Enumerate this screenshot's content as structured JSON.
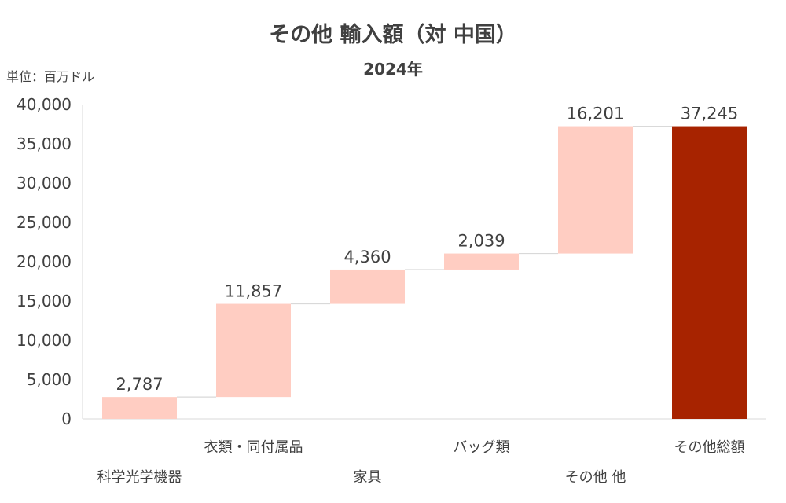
{
  "title": "その他 輸入額（対 中国）",
  "subtitle": "2024年",
  "unit_label": "単位：百万ドル",
  "colors": {
    "increase": "#ffcdc2",
    "total": "#a72300",
    "connector": "#d9d9d9",
    "axis": "#d9d9d9",
    "text": "#404040"
  },
  "chart_data": {
    "type": "bar",
    "subtype": "waterfall",
    "categories": [
      "科学光学機器",
      "衣類・同付属品",
      "家具",
      "バッグ類",
      "その他 他",
      "その他総額"
    ],
    "values": [
      2787,
      11857,
      4360,
      2039,
      16201,
      37245
    ],
    "data_labels": [
      "2,787",
      "11,857",
      "4,360",
      "2,039",
      "16,201",
      "37,245"
    ],
    "bar_kinds": [
      "increase",
      "increase",
      "increase",
      "increase",
      "increase",
      "total"
    ],
    "ylim": [
      0,
      40000
    ],
    "yticks": [
      0,
      5000,
      10000,
      15000,
      20000,
      25000,
      30000,
      35000,
      40000
    ],
    "ytick_labels": [
      "0",
      "5,000",
      "10,000",
      "15,000",
      "20,000",
      "25,000",
      "30,000",
      "35,000",
      "40,000"
    ],
    "grid": false,
    "legend": "none"
  }
}
